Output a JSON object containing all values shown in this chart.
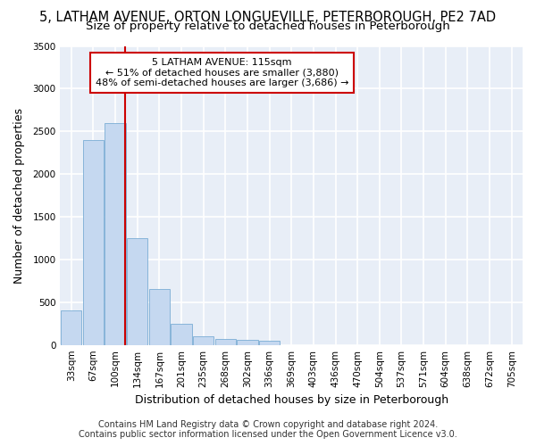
{
  "title_line1": "5, LATHAM AVENUE, ORTON LONGUEVILLE, PETERBOROUGH, PE2 7AD",
  "title_line2": "Size of property relative to detached houses in Peterborough",
  "xlabel": "Distribution of detached houses by size in Peterborough",
  "ylabel": "Number of detached properties",
  "footnote1": "Contains HM Land Registry data © Crown copyright and database right 2024.",
  "footnote2": "Contains public sector information licensed under the Open Government Licence v3.0.",
  "annotation_line1": "5 LATHAM AVENUE: 115sqm",
  "annotation_line2": "← 51% of detached houses are smaller (3,880)",
  "annotation_line3": "48% of semi-detached houses are larger (3,686) →",
  "bar_categories": [
    "33sqm",
    "67sqm",
    "100sqm",
    "134sqm",
    "167sqm",
    "201sqm",
    "235sqm",
    "268sqm",
    "302sqm",
    "336sqm",
    "369sqm",
    "403sqm",
    "436sqm",
    "470sqm",
    "504sqm",
    "537sqm",
    "571sqm",
    "604sqm",
    "638sqm",
    "672sqm",
    "705sqm"
  ],
  "bar_values": [
    400,
    2400,
    2600,
    1250,
    650,
    250,
    100,
    70,
    60,
    50,
    0,
    0,
    0,
    0,
    0,
    0,
    0,
    0,
    0,
    0,
    0
  ],
  "bar_color": "#c5d8f0",
  "bar_edge_color": "#7badd4",
  "vline_color": "#cc0000",
  "ylim": [
    0,
    3500
  ],
  "yticks": [
    0,
    500,
    1000,
    1500,
    2000,
    2500,
    3000,
    3500
  ],
  "bg_color": "#e8eef7",
  "plot_bg_color": "#ffffff",
  "grid_color": "#dde6f0",
  "annotation_box_color": "#ffffff",
  "annotation_box_edge": "#cc0000",
  "title_fontsize": 10.5,
  "subtitle_fontsize": 9.5,
  "axis_label_fontsize": 9,
  "tick_fontsize": 7.5,
  "annotation_fontsize": 8,
  "footnote_fontsize": 7
}
